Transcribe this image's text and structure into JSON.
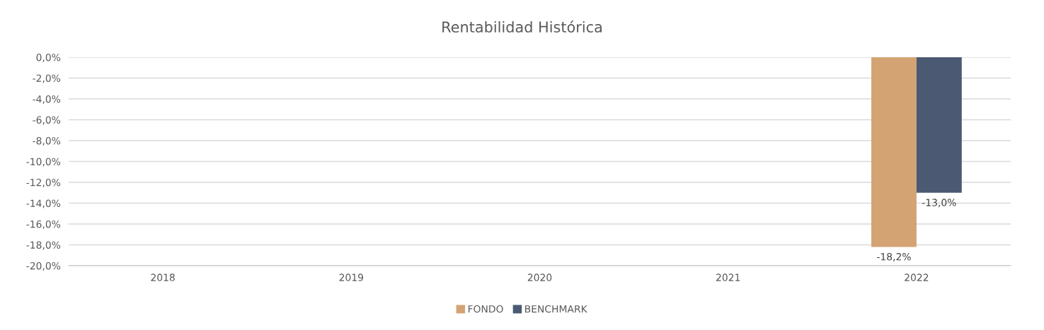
{
  "chart_data": {
    "type": "bar",
    "title": "Rentabilidad Histórica",
    "categories": [
      "2018",
      "2019",
      "2020",
      "2021",
      "2022"
    ],
    "series": [
      {
        "name": "FONDO",
        "color": "#d4a373",
        "values": [
          null,
          null,
          null,
          null,
          -18.2
        ],
        "value_labels": [
          null,
          null,
          null,
          null,
          "-18,2%"
        ]
      },
      {
        "name": "BENCHMARK",
        "color": "#4b5a72",
        "values": [
          null,
          null,
          null,
          null,
          -13.0
        ],
        "value_labels": [
          null,
          null,
          null,
          null,
          "-13,0%"
        ]
      }
    ],
    "ylim": [
      -20,
      0
    ],
    "yticks": [
      {
        "value": 0,
        "label": "0,0%"
      },
      {
        "value": -2,
        "label": "-2,0%"
      },
      {
        "value": -4,
        "label": "-4,0%"
      },
      {
        "value": -6,
        "label": "-6,0%"
      },
      {
        "value": -8,
        "label": "-8,0%"
      },
      {
        "value": -10,
        "label": "-10,0%"
      },
      {
        "value": -12,
        "label": "-12,0%"
      },
      {
        "value": -14,
        "label": "-14,0%"
      },
      {
        "value": -16,
        "label": "-16,0%"
      },
      {
        "value": -18,
        "label": "-18,0%"
      },
      {
        "value": -20,
        "label": "-20,0%"
      }
    ],
    "grid": "y",
    "legend": "bottom"
  }
}
